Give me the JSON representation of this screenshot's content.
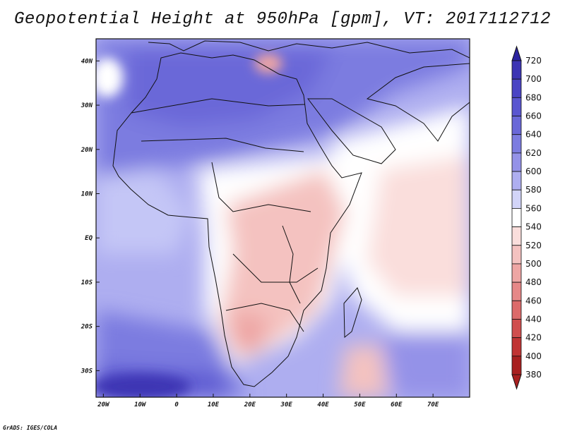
{
  "title": "Geopotential Height at 950hPa [gpm], VT: 2017112712",
  "credit": "GrADS: IGES/COLA",
  "map": {
    "lon_range": [
      -22,
      80
    ],
    "lat_range": [
      -36,
      45
    ],
    "lat_ticks": [
      {
        "value": 40,
        "label": "40N"
      },
      {
        "value": 30,
        "label": "30N"
      },
      {
        "value": 20,
        "label": "20N"
      },
      {
        "value": 10,
        "label": "10N"
      },
      {
        "value": 0,
        "label": "EQ"
      },
      {
        "value": -10,
        "label": "10S"
      },
      {
        "value": -20,
        "label": "20S"
      },
      {
        "value": -30,
        "label": "30S"
      }
    ],
    "lon_ticks": [
      {
        "value": -20,
        "label": "20W"
      },
      {
        "value": -10,
        "label": "10W"
      },
      {
        "value": 0,
        "label": "0"
      },
      {
        "value": 10,
        "label": "10E"
      },
      {
        "value": 20,
        "label": "20E"
      },
      {
        "value": 30,
        "label": "30E"
      },
      {
        "value": 40,
        "label": "40E"
      },
      {
        "value": 50,
        "label": "50E"
      },
      {
        "value": 60,
        "label": "60E"
      },
      {
        "value": 70,
        "label": "70E"
      }
    ]
  },
  "colorbar": {
    "levels": [
      {
        "label": "720",
        "color": "#2c24a0"
      },
      {
        "label": "700",
        "color": "#3c34b4"
      },
      {
        "label": "680",
        "color": "#4a44c4"
      },
      {
        "label": "660",
        "color": "#5a56d0"
      },
      {
        "label": "640",
        "color": "#6a68d8"
      },
      {
        "label": "620",
        "color": "#7c7ce0"
      },
      {
        "label": "600",
        "color": "#9492e8"
      },
      {
        "label": "580",
        "color": "#aeaef0"
      },
      {
        "label": "560",
        "color": "#d2d4f8"
      },
      {
        "label": "540",
        "color": "#ffffff"
      },
      {
        "label": "520",
        "color": "#fadedc"
      },
      {
        "label": "500",
        "color": "#f4c2c0"
      },
      {
        "label": "480",
        "color": "#eea6a4"
      },
      {
        "label": "460",
        "color": "#e68888"
      },
      {
        "label": "440",
        "color": "#dc6a6a"
      },
      {
        "label": "420",
        "color": "#d04e4e"
      },
      {
        "label": "400",
        "color": "#c03434"
      },
      {
        "label": "380",
        "color": "#a82020"
      }
    ]
  }
}
